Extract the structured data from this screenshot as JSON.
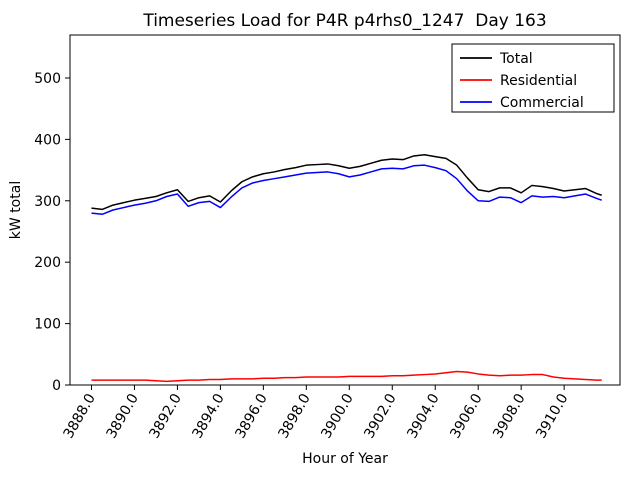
{
  "figure": {
    "background": "#ffffff"
  },
  "chart_data": {
    "type": "line",
    "title": "Timeseries Load for P4R p4rhs0_1247  Day 163",
    "xlabel": "Hour of Year",
    "ylabel": "kW total",
    "grid": false,
    "legend_position": "upper right",
    "xlim": [
      3887.0,
      3912.6
    ],
    "ylim": [
      0,
      570
    ],
    "xticks": [
      3888,
      3890,
      3892,
      3894,
      3896,
      3898,
      3900,
      3902,
      3904,
      3906,
      3908,
      3910
    ],
    "xtick_labels": [
      "3888.0",
      "3890.0",
      "3892.0",
      "3894.0",
      "3896.0",
      "3898.0",
      "3900.0",
      "3902.0",
      "3904.0",
      "3906.0",
      "3908.0",
      "3910.0"
    ],
    "yticks": [
      0,
      100,
      200,
      300,
      400,
      500
    ],
    "ytick_labels": [
      "0",
      "100",
      "200",
      "300",
      "400",
      "500"
    ],
    "x": [
      3888.0,
      3888.5,
      3889.0,
      3889.5,
      3890.0,
      3890.5,
      3891.0,
      3891.5,
      3892.0,
      3892.5,
      3893.0,
      3893.5,
      3894.0,
      3894.5,
      3895.0,
      3895.5,
      3896.0,
      3896.5,
      3897.0,
      3897.5,
      3898.0,
      3898.5,
      3899.0,
      3899.5,
      3900.0,
      3900.5,
      3901.0,
      3901.5,
      3902.0,
      3902.5,
      3903.0,
      3903.5,
      3904.0,
      3904.5,
      3905.0,
      3905.5,
      3906.0,
      3906.5,
      3907.0,
      3907.5,
      3908.0,
      3908.5,
      3909.0,
      3909.5,
      3910.0,
      3910.5,
      3911.0,
      3911.5,
      3911.75
    ],
    "series": [
      {
        "name": "Total",
        "color": "#000000",
        "values": [
          288,
          286,
          293,
          297,
          301,
          304,
          307,
          313,
          318,
          299,
          305,
          308,
          298,
          316,
          331,
          339,
          344,
          347,
          351,
          354,
          358,
          359,
          360,
          357,
          353,
          356,
          361,
          366,
          368,
          367,
          373,
          375,
          372,
          369,
          358,
          337,
          318,
          315,
          321,
          321,
          313,
          325,
          323,
          320,
          316,
          318,
          320,
          312,
          309
        ]
      },
      {
        "name": "Residential",
        "color": "#ff0000",
        "values": [
          8,
          8,
          8,
          8,
          8,
          8,
          7,
          6,
          7,
          8,
          8,
          9,
          9,
          10,
          10,
          10,
          11,
          11,
          12,
          12,
          13,
          13,
          13,
          13,
          14,
          14,
          14,
          14,
          15,
          15,
          16,
          17,
          18,
          20,
          22,
          21,
          18,
          16,
          15,
          16,
          16,
          17,
          17,
          13,
          11,
          10,
          9,
          8,
          8
        ]
      },
      {
        "name": "Commercial",
        "color": "#0000ff",
        "values": [
          280,
          278,
          285,
          289,
          293,
          296,
          300,
          307,
          311,
          291,
          297,
          299,
          289,
          306,
          321,
          329,
          333,
          336,
          339,
          342,
          345,
          346,
          347,
          344,
          339,
          342,
          347,
          352,
          353,
          352,
          357,
          358,
          354,
          349,
          336,
          316,
          300,
          299,
          306,
          305,
          297,
          308,
          306,
          307,
          305,
          308,
          311,
          304,
          301
        ]
      }
    ]
  }
}
